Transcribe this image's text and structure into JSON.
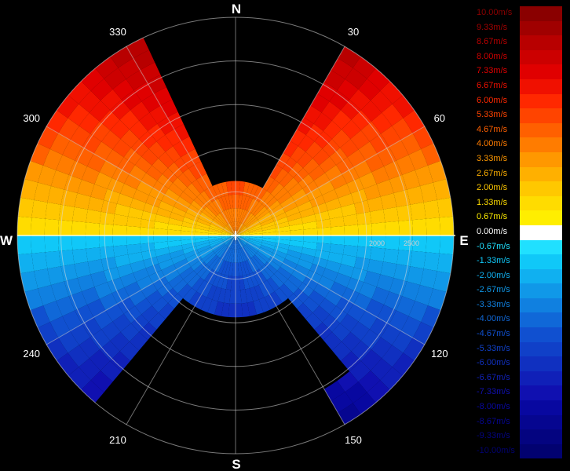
{
  "display": {
    "cardinals": {
      "north": "N",
      "south": "S",
      "east": "E",
      "west": "W"
    },
    "azimuth_labels": [
      {
        "angle": 30,
        "text": "30"
      },
      {
        "angle": 60,
        "text": "60"
      },
      {
        "angle": 120,
        "text": "120"
      },
      {
        "angle": 150,
        "text": "150"
      },
      {
        "angle": 210,
        "text": "210"
      },
      {
        "angle": 240,
        "text": "240"
      },
      {
        "angle": 300,
        "text": "300"
      },
      {
        "angle": 330,
        "text": "330"
      }
    ],
    "range_labels": [
      "2000",
      "2500"
    ]
  },
  "legend": {
    "entries": [
      {
        "label": "10.00m/s",
        "color": "#8a0000"
      },
      {
        "label": "9.33m/s",
        "color": "#a00000"
      },
      {
        "label": "8.67m/s",
        "color": "#b80000"
      },
      {
        "label": "8.00m/s",
        "color": "#cc0000"
      },
      {
        "label": "7.33m/s",
        "color": "#e00000"
      },
      {
        "label": "6.67m/s",
        "color": "#f01000"
      },
      {
        "label": "6.00m/s",
        "color": "#ff2800"
      },
      {
        "label": "5.33m/s",
        "color": "#ff4400"
      },
      {
        "label": "4.67m/s",
        "color": "#ff6000"
      },
      {
        "label": "4.00m/s",
        "color": "#ff7c00"
      },
      {
        "label": "3.33m/s",
        "color": "#ff9800"
      },
      {
        "label": "2.67m/s",
        "color": "#ffb000"
      },
      {
        "label": "2.00m/s",
        "color": "#ffc800"
      },
      {
        "label": "1.33m/s",
        "color": "#ffdc00"
      },
      {
        "label": "0.67m/s",
        "color": "#ffee00"
      },
      {
        "label": "0.00m/s",
        "color": "#ffffff"
      },
      {
        "label": "-0.67m/s",
        "color": "#20e0ff"
      },
      {
        "label": "-1.33m/s",
        "color": "#10c8f8"
      },
      {
        "label": "-2.00m/s",
        "color": "#10b0f0"
      },
      {
        "label": "-2.67m/s",
        "color": "#1098e8"
      },
      {
        "label": "-3.33m/s",
        "color": "#1080e0"
      },
      {
        "label": "-4.00m/s",
        "color": "#1068d8"
      },
      {
        "label": "-4.67m/s",
        "color": "#1050d0"
      },
      {
        "label": "-5.33m/s",
        "color": "#1040c8"
      },
      {
        "label": "-6.00m/s",
        "color": "#1030c0"
      },
      {
        "label": "-6.67m/s",
        "color": "#1020b8"
      },
      {
        "label": "-7.33m/s",
        "color": "#1010b0"
      },
      {
        "label": "-8.00m/s",
        "color": "#0808a0"
      },
      {
        "label": "-8.67m/s",
        "color": "#060690"
      },
      {
        "label": "-9.33m/s",
        "color": "#040480"
      },
      {
        "label": "-10.00m/s",
        "color": "#020270"
      }
    ]
  }
}
